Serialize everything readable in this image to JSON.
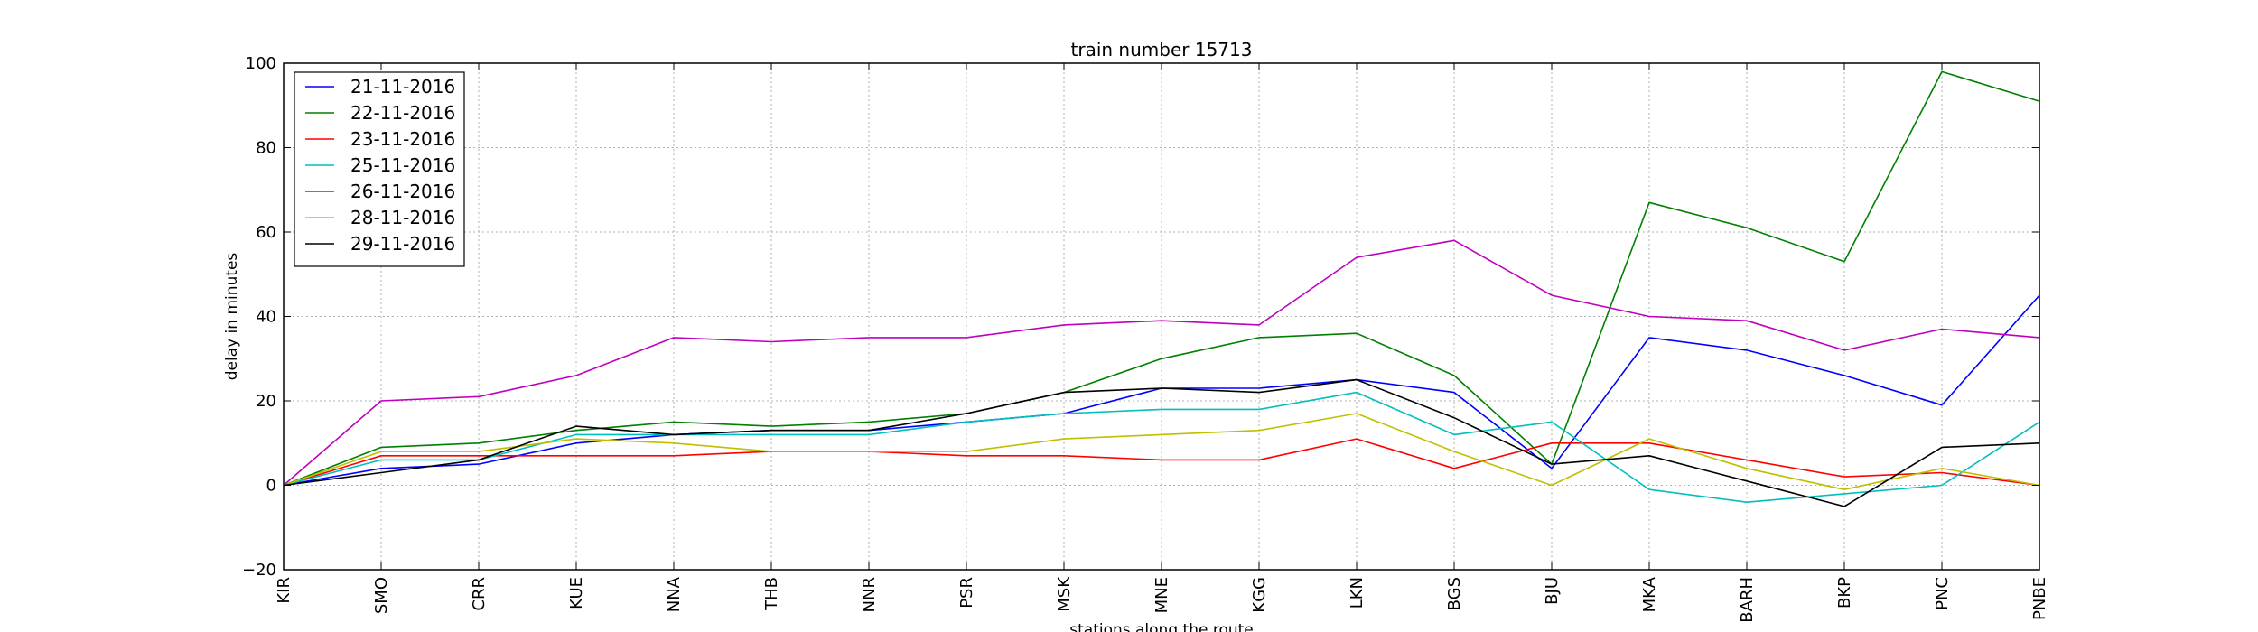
{
  "chart_data": {
    "type": "line",
    "title": "train number 15713",
    "xlabel": "stations along the route",
    "ylabel": "delay in minutes",
    "ylim": [
      -20,
      100
    ],
    "yticks": [
      -20,
      0,
      20,
      40,
      60,
      80,
      100
    ],
    "grid": true,
    "legend_position": "top-left",
    "categories": [
      "KIR",
      "SMO",
      "CRR",
      "KUE",
      "NNA",
      "THB",
      "NNR",
      "PSR",
      "MSK",
      "MNE",
      "KGG",
      "LKN",
      "BGS",
      "BJU",
      "MKA",
      "BARH",
      "BKP",
      "PNC",
      "PNBE"
    ],
    "series": [
      {
        "name": "21-11-2016",
        "color": "#0000ff",
        "values": [
          0,
          4,
          5,
          10,
          12,
          13,
          13,
          15,
          17,
          23,
          23,
          25,
          22,
          4,
          35,
          32,
          26,
          19,
          45
        ]
      },
      {
        "name": "22-11-2016",
        "color": "#008000",
        "values": [
          0,
          9,
          10,
          13,
          15,
          14,
          15,
          17,
          22,
          30,
          35,
          36,
          26,
          5,
          67,
          61,
          53,
          98,
          91
        ]
      },
      {
        "name": "23-11-2016",
        "color": "#ff0000",
        "values": [
          0,
          7,
          7,
          7,
          7,
          8,
          8,
          7,
          7,
          6,
          6,
          11,
          4,
          10,
          10,
          6,
          2,
          3,
          0
        ]
      },
      {
        "name": "25-11-2016",
        "color": "#00bfbf",
        "values": [
          0,
          6,
          6,
          12,
          12,
          12,
          12,
          15,
          17,
          18,
          18,
          22,
          12,
          15,
          -1,
          -4,
          -2,
          0,
          15
        ]
      },
      {
        "name": "26-11-2016",
        "color": "#bf00bf",
        "values": [
          0,
          20,
          21,
          26,
          35,
          34,
          35,
          35,
          38,
          39,
          38,
          54,
          58,
          45,
          40,
          39,
          32,
          37,
          35
        ]
      },
      {
        "name": "28-11-2016",
        "color": "#bfbf00",
        "values": [
          0,
          8,
          8,
          11,
          10,
          8,
          8,
          8,
          11,
          12,
          13,
          17,
          8,
          0,
          11,
          4,
          -1,
          4,
          0
        ]
      },
      {
        "name": "29-11-2016",
        "color": "#000000",
        "values": [
          0,
          3,
          6,
          14,
          12,
          13,
          13,
          17,
          22,
          23,
          22,
          25,
          16,
          5,
          7,
          1,
          -5,
          9,
          10
        ]
      }
    ]
  }
}
